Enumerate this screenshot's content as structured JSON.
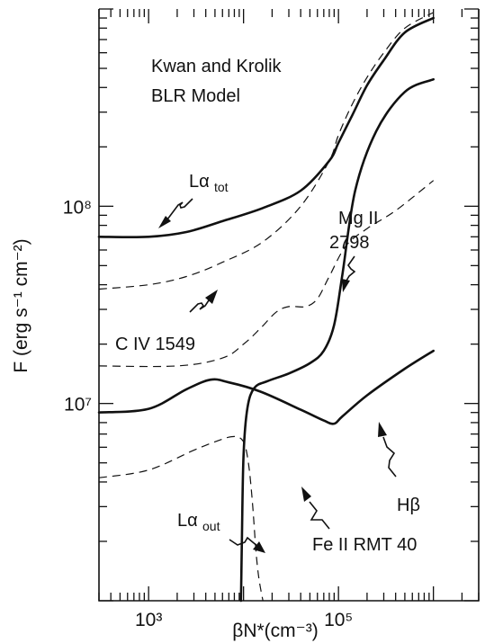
{
  "chart_data": {
    "type": "line",
    "title": [
      "Kwan and Krolik",
      "BLR Model"
    ],
    "xlabel": "βN*(cm⁻³)",
    "ylabel": "F (erg s⁻¹ cm⁻²)",
    "xscale": "log",
    "yscale": "log",
    "xlim": [
      300,
      3000000
    ],
    "ylim": [
      1000000,
      1000000000
    ],
    "x_ticks": [
      {
        "value": 1000,
        "label": "10³"
      },
      {
        "value": 100000,
        "label": "10⁵"
      }
    ],
    "y_ticks": [
      {
        "value": 10000000,
        "label": "10⁷"
      },
      {
        "value": 100000000,
        "label": "10⁸"
      }
    ],
    "series": [
      {
        "name": "Lα tot",
        "style": "solid",
        "x": [
          300,
          1000,
          2500,
          6000,
          16000,
          40000,
          80000,
          100000,
          140000,
          200000,
          300000,
          500000,
          1000000
        ],
        "y": [
          70000000,
          70000000,
          74000000,
          84000000,
          98000000,
          120000000,
          170000000,
          210000000,
          290000000,
          410000000,
          550000000,
          760000000,
          900000000
        ]
      },
      {
        "name": "Lα out",
        "style": "solid",
        "x": [
          9400,
          9600,
          10000,
          11000,
          13000,
          18000,
          30000,
          50000,
          70000,
          90000,
          110000,
          150000,
          250000,
          500000,
          1000000
        ],
        "y": [
          1000000,
          2000000,
          5500000,
          9500000,
          12000000,
          13000000,
          14200000,
          16000000,
          18500000,
          25000000,
          45000000,
          120000000,
          240000000,
          380000000,
          440000000
        ]
      },
      {
        "name": "Hβ",
        "style": "solid",
        "x": [
          300,
          1000,
          2500,
          4500,
          7000,
          15000,
          40000,
          70000,
          90000,
          110000,
          200000,
          500000,
          1000000
        ],
        "y": [
          9000000,
          9400000,
          11800000,
          13200000,
          12800000,
          11500000,
          9300000,
          8200000,
          7900000,
          8600000,
          11000000,
          15000000,
          18500000
        ]
      },
      {
        "name": "C IV 1549",
        "style": "dashed",
        "x": [
          300,
          1000,
          2500,
          6000,
          16000,
          40000,
          80000,
          100000,
          140000,
          200000,
          300000,
          500000,
          1000000
        ],
        "y": [
          38000000,
          40000000,
          44000000,
          52000000,
          66000000,
          100000000,
          170000000,
          230000000,
          330000000,
          450000000,
          600000000,
          800000000,
          960000000
        ]
      },
      {
        "name": "Mg II 2798",
        "style": "dashed",
        "x": [
          300,
          2000,
          6000,
          10000,
          15000,
          22000,
          30000,
          45000,
          60000,
          80000,
          120000,
          200000,
          400000,
          1000000
        ],
        "y": [
          15500000,
          15500000,
          17000000,
          20000000,
          24000000,
          29000000,
          31000000,
          31000000,
          34000000,
          44000000,
          63000000,
          77000000,
          95000000,
          135000000
        ]
      },
      {
        "name": "Fe II RMT 40",
        "style": "dashed",
        "x": [
          300,
          1000,
          3000,
          6000,
          8000,
          9500,
          10500,
          11500,
          12500,
          13500,
          14500,
          16000
        ],
        "y": [
          4200000,
          4600000,
          5800000,
          6600000,
          6800000,
          6600000,
          6000000,
          4600000,
          3000000,
          1800000,
          1300000,
          1000000
        ]
      }
    ]
  },
  "labels": {
    "title_line1": "Kwan and Krolik",
    "title_line2": "BLR Model",
    "la_tot_main": "Lα",
    "la_tot_sub": "tot",
    "la_out_main": "Lα",
    "la_out_sub": "out",
    "mgii_line1": "Mg II",
    "mgii_line2": "2798",
    "civ": "C IV 1549",
    "hbeta": "Hβ",
    "feii": "Fe II RMT 40"
  }
}
